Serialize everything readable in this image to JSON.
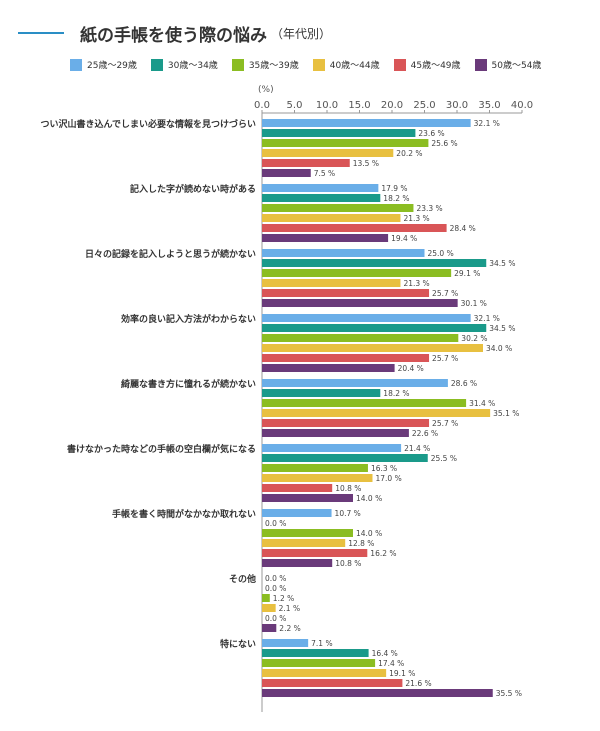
{
  "title": "紙の手帳を使う際の悩み",
  "subtitle": "（年代別）",
  "chart_data": {
    "type": "bar",
    "orientation": "horizontal",
    "unit_label": "(%)",
    "xlim": [
      0,
      40
    ],
    "ticks": [
      "0.0",
      "5.0",
      "10.0",
      "15.0",
      "20.0",
      "25.0",
      "30.0",
      "35.0",
      "40.0"
    ],
    "legend_position": "top",
    "categories": [
      "つい沢山書き込んでしまい必要な情報を見つけづらい",
      "記入した字が読めない時がある",
      "日々の記録を記入しようと思うが続かない",
      "効率の良い記入方法がわからない",
      "綺麗な書き方に憧れるが続かない",
      "書けなかった時などの手帳の空白欄が気になる",
      "手帳を書く時間がなかなか取れない",
      "その他",
      "特にない"
    ],
    "series": [
      {
        "name": "25歳～29歳",
        "color": "#6aaee8",
        "values": [
          32.1,
          17.9,
          25.0,
          32.1,
          28.6,
          21.4,
          10.7,
          0.0,
          7.1
        ]
      },
      {
        "name": "30歳～34歳",
        "color": "#1a9a8a",
        "values": [
          23.6,
          18.2,
          34.5,
          34.5,
          18.2,
          25.5,
          0.0,
          0.0,
          16.4
        ]
      },
      {
        "name": "35歳～39歳",
        "color": "#8bbd22",
        "values": [
          25.6,
          23.3,
          29.1,
          30.2,
          31.4,
          16.3,
          14.0,
          1.2,
          17.4
        ]
      },
      {
        "name": "40歳～44歳",
        "color": "#e8c040",
        "values": [
          20.2,
          21.3,
          21.3,
          34.0,
          35.1,
          17.0,
          12.8,
          2.1,
          19.1
        ]
      },
      {
        "name": "45歳～49歳",
        "color": "#d95557",
        "values": [
          13.5,
          28.4,
          25.7,
          25.7,
          25.7,
          10.8,
          16.2,
          0.0,
          21.6
        ]
      },
      {
        "name": "50歳～54歳",
        "color": "#6a3a7a",
        "values": [
          7.5,
          19.4,
          30.1,
          20.4,
          22.6,
          14.0,
          10.8,
          2.2,
          35.5
        ]
      }
    ],
    "value_suffix": " %"
  }
}
